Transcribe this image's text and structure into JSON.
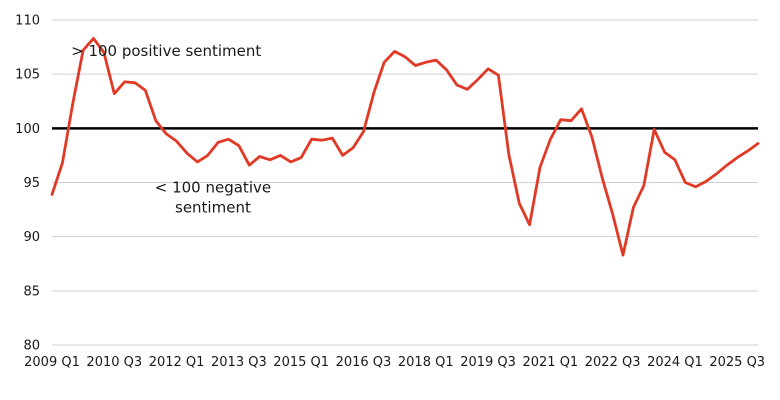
{
  "chart_data": {
    "type": "line",
    "title": "",
    "xlabel": "",
    "ylabel": "",
    "ylim": [
      80,
      110
    ],
    "yticks": [
      80,
      85,
      90,
      95,
      100,
      105,
      110
    ],
    "grid": "horizontal",
    "xtick_labels": [
      "2009 Q1",
      "2010 Q3",
      "2012 Q1",
      "2013 Q3",
      "2015 Q1",
      "2016 Q3",
      "2018 Q1",
      "2019 Q3",
      "2021 Q1",
      "2022 Q3",
      "2024 Q1",
      "2025 Q3"
    ],
    "xtick_index": [
      0,
      6,
      12,
      18,
      24,
      30,
      36,
      42,
      48,
      54,
      60,
      66
    ],
    "reference_line": {
      "y": 100,
      "color": "#000000"
    },
    "annotations": [
      {
        "lines": [
          "> 100 positive sentiment"
        ],
        "at_index": 11,
        "at_value": 106.7
      },
      {
        "lines": [
          "< 100 negative",
          "sentiment"
        ],
        "at_index": 15.5,
        "at_value": 94.1
      }
    ],
    "series": [
      {
        "color": "#e03a26",
        "values": [
          93.9,
          96.8,
          102.3,
          107.2,
          108.3,
          107.0,
          103.2,
          104.3,
          104.2,
          103.5,
          100.7,
          99.5,
          98.8,
          97.7,
          96.9,
          97.5,
          98.7,
          99.0,
          98.4,
          96.6,
          97.4,
          97.1,
          97.5,
          96.9,
          97.3,
          99.0,
          98.9,
          99.1,
          97.5,
          98.2,
          99.7,
          103.3,
          106.1,
          107.1,
          106.6,
          105.8,
          106.1,
          106.3,
          105.4,
          104.0,
          103.6,
          104.5,
          105.5,
          104.9,
          97.6,
          93.1,
          91.1,
          96.4,
          99.0,
          100.8,
          100.7,
          101.8,
          99.2,
          95.4,
          92.1,
          88.3,
          92.7,
          94.7,
          99.9,
          97.8,
          97.1,
          95.0,
          94.6,
          95.1,
          95.8,
          96.6,
          97.3,
          97.9,
          98.6
        ]
      }
    ]
  }
}
